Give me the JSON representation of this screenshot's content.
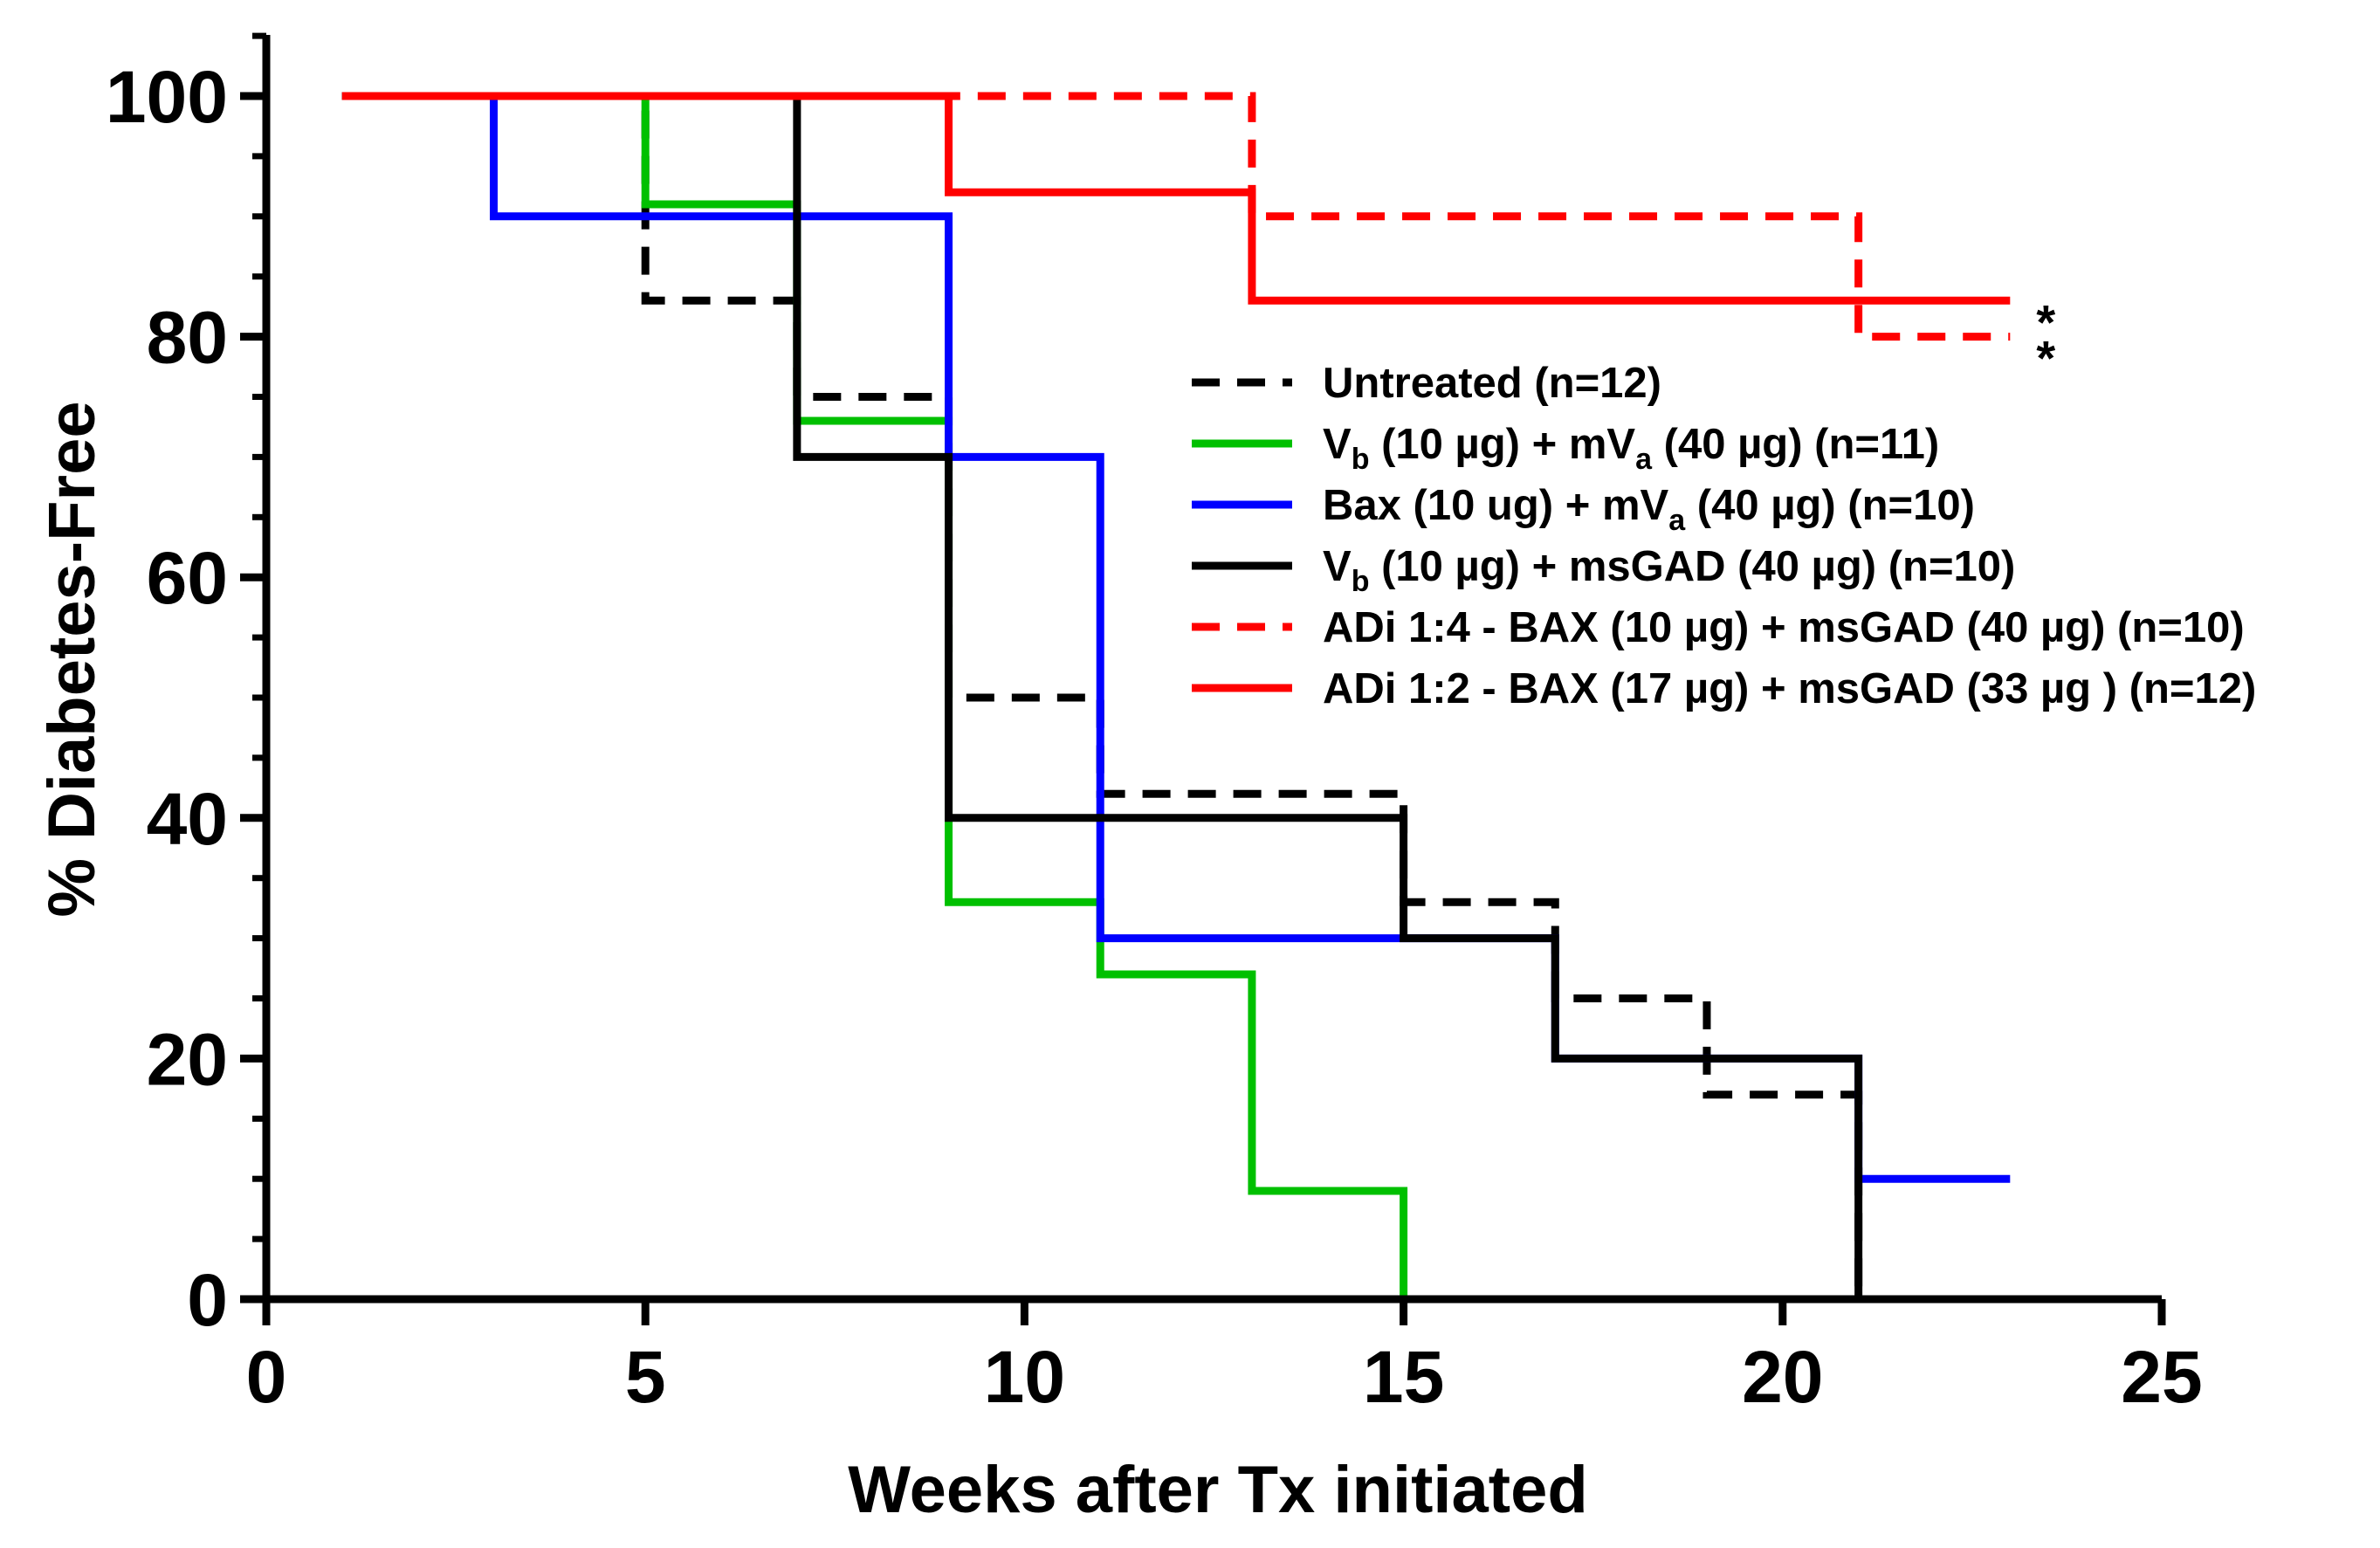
{
  "chart_data": {
    "type": "line",
    "subtype": "kaplan-meier-step",
    "xlabel": "Weeks after Tx initiated",
    "ylabel": "% Diabetes-Free",
    "xlim": [
      0,
      25
    ],
    "ylim": [
      0,
      100
    ],
    "x_ticks": [
      0,
      5,
      10,
      15,
      20,
      25
    ],
    "y_ticks": [
      0,
      20,
      40,
      60,
      80,
      100
    ],
    "legend_position": "center-right",
    "series": [
      {
        "name": "Untreated (n=12)",
        "legend_parts": [
          {
            "t": "Untreated (n=12)"
          }
        ],
        "color": "#000000",
        "dashed": true,
        "x": [
          1,
          5,
          7,
          9,
          11,
          15,
          17,
          19,
          21,
          21
        ],
        "y": [
          100,
          83,
          75,
          50,
          42,
          33,
          25,
          17,
          0,
          0
        ],
        "significance": ""
      },
      {
        "name": "Vb (10 µg) + mVa (40 µg) (n=11)",
        "legend_parts": [
          {
            "t": "V"
          },
          {
            "t": "b",
            "sub": true
          },
          {
            "t": " (10 µg) + mV"
          },
          {
            "t": "a",
            "sub": true
          },
          {
            "t": " (40 µg) (n=11)"
          }
        ],
        "color": "#00c000",
        "dashed": false,
        "x": [
          1,
          5,
          7,
          9,
          11,
          13,
          15,
          15
        ],
        "y": [
          100,
          91,
          73,
          33,
          27,
          9,
          0,
          0
        ],
        "significance": ""
      },
      {
        "name": "Bax (10 ug) + mVa (40 µg) (n=10)",
        "legend_parts": [
          {
            "t": "Bax (10 ug) + mV"
          },
          {
            "t": "a",
            "sub": true
          },
          {
            "t": " (40 µg) (n=10)"
          }
        ],
        "color": "#0000ff",
        "dashed": false,
        "x": [
          1,
          3,
          9,
          11,
          17,
          21,
          23
        ],
        "y": [
          100,
          90,
          70,
          30,
          20,
          10,
          10
        ],
        "significance": ""
      },
      {
        "name": "Vb (10 µg) + msGAD (40 µg)  (n=10)",
        "legend_parts": [
          {
            "t": "V"
          },
          {
            "t": "b",
            "sub": true
          },
          {
            "t": " (10 µg) + msGAD (40 µg)  (n=10)"
          }
        ],
        "color": "#000000",
        "dashed": false,
        "x": [
          1,
          7,
          9,
          15,
          17,
          21,
          21
        ],
        "y": [
          100,
          70,
          40,
          30,
          20,
          0,
          0
        ],
        "significance": ""
      },
      {
        "name": "ADi 1:4 - BAX (10 µg) + msGAD (40 µg) (n=10)",
        "legend_parts": [
          {
            "t": "ADi 1:4 - BAX (10 µg) + msGAD (40 µg) (n=10)"
          }
        ],
        "color": "#ff0000",
        "dashed": true,
        "x": [
          1,
          13,
          21,
          23
        ],
        "y": [
          100,
          90,
          80,
          80
        ],
        "significance": "*"
      },
      {
        "name": "ADi 1:2 - BAX (17 µg) + msGAD (33 µg ) (n=12)",
        "legend_parts": [
          {
            "t": "ADi 1:2 - BAX (17 µg) + msGAD (33 µg ) (n=12)"
          }
        ],
        "color": "#ff0000",
        "dashed": false,
        "x": [
          1,
          9,
          13,
          23
        ],
        "y": [
          100,
          92,
          83,
          83
        ],
        "significance": "*"
      }
    ]
  }
}
